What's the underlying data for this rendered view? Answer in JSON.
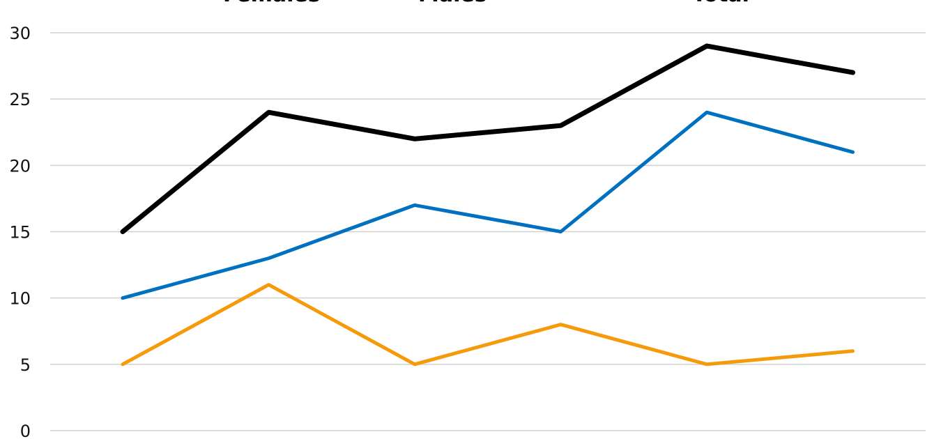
{
  "chart_data": {
    "type": "line",
    "title": "",
    "xlabel": "",
    "ylabel": "",
    "ylim": [
      0,
      30
    ],
    "yticks": [
      0,
      5,
      10,
      15,
      20,
      25,
      30
    ],
    "grid": true,
    "legend_position": "top",
    "x": [
      1,
      2,
      3,
      4,
      5,
      6
    ],
    "series": [
      {
        "name": "Females",
        "color": "#F59A0A",
        "values": [
          5,
          11,
          5,
          8,
          5,
          6
        ]
      },
      {
        "name": "Males",
        "color": "#0070C0",
        "values": [
          10,
          13,
          17,
          15,
          24,
          21
        ]
      },
      {
        "name": "Total",
        "color": "#000000",
        "values": [
          15,
          24,
          22,
          23,
          29,
          27
        ]
      }
    ]
  }
}
